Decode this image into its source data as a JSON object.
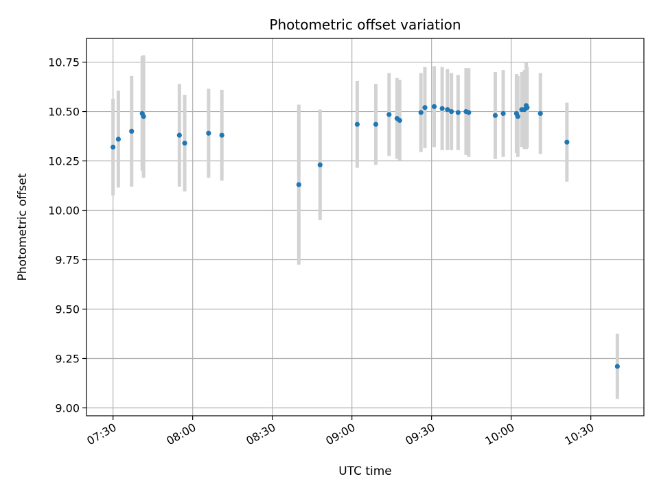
{
  "chart_data": {
    "type": "scatter",
    "title": "Photometric offset variation",
    "xlabel": "UTC time",
    "ylabel": "Photometric offset",
    "x_tick_labels": [
      "07:30",
      "08:00",
      "08:30",
      "09:00",
      "09:30",
      "10:00",
      "10:30"
    ],
    "y_tick_labels": [
      "9.00",
      "9.25",
      "9.50",
      "9.75",
      "10.00",
      "10.25",
      "10.50",
      "10.75"
    ],
    "xlim": [
      "07:20",
      "10:50"
    ],
    "ylim": [
      8.96,
      10.87
    ],
    "grid": true,
    "legend": "none",
    "colors": {
      "marker": "#1f77b4",
      "errorbar": "#d3d3d3",
      "grid": "#b0b0b0"
    },
    "points": [
      {
        "x": "07:30",
        "y": 10.32,
        "yerr": 0.245
      },
      {
        "x": "07:32",
        "y": 10.36,
        "yerr": 0.245
      },
      {
        "x": "07:37",
        "y": 10.4,
        "yerr": 0.28
      },
      {
        "x": "07:41",
        "y": 10.49,
        "yerr": 0.29
      },
      {
        "x": "07:41:30",
        "y": 10.475,
        "yerr": 0.31
      },
      {
        "x": "07:55",
        "y": 10.38,
        "yerr": 0.26
      },
      {
        "x": "07:57",
        "y": 10.34,
        "yerr": 0.245
      },
      {
        "x": "08:06",
        "y": 10.39,
        "yerr": 0.225
      },
      {
        "x": "08:11",
        "y": 10.38,
        "yerr": 0.23
      },
      {
        "x": "08:40",
        "y": 10.13,
        "yerr": 0.405
      },
      {
        "x": "08:48",
        "y": 10.23,
        "yerr": 0.28
      },
      {
        "x": "09:02",
        "y": 10.435,
        "yerr": 0.22
      },
      {
        "x": "09:09",
        "y": 10.435,
        "yerr": 0.205
      },
      {
        "x": "09:14",
        "y": 10.485,
        "yerr": 0.21
      },
      {
        "x": "09:17",
        "y": 10.465,
        "yerr": 0.205
      },
      {
        "x": "09:18",
        "y": 10.455,
        "yerr": 0.205
      },
      {
        "x": "09:26",
        "y": 10.495,
        "yerr": 0.2
      },
      {
        "x": "09:27:30",
        "y": 10.52,
        "yerr": 0.205
      },
      {
        "x": "09:31",
        "y": 10.525,
        "yerr": 0.205
      },
      {
        "x": "09:34",
        "y": 10.515,
        "yerr": 0.21
      },
      {
        "x": "09:36",
        "y": 10.51,
        "yerr": 0.205
      },
      {
        "x": "09:37:30",
        "y": 10.5,
        "yerr": 0.195
      },
      {
        "x": "09:40",
        "y": 10.495,
        "yerr": 0.19
      },
      {
        "x": "09:43",
        "y": 10.5,
        "yerr": 0.22
      },
      {
        "x": "09:44",
        "y": 10.495,
        "yerr": 0.225
      },
      {
        "x": "09:54",
        "y": 10.48,
        "yerr": 0.22
      },
      {
        "x": "09:57",
        "y": 10.49,
        "yerr": 0.22
      },
      {
        "x": "10:02",
        "y": 10.49,
        "yerr": 0.2
      },
      {
        "x": "10:02:30",
        "y": 10.475,
        "yerr": 0.205
      },
      {
        "x": "10:04",
        "y": 10.51,
        "yerr": 0.19
      },
      {
        "x": "10:05",
        "y": 10.51,
        "yerr": 0.2
      },
      {
        "x": "10:05:40",
        "y": 10.53,
        "yerr": 0.22
      },
      {
        "x": "10:06",
        "y": 10.52,
        "yerr": 0.205
      },
      {
        "x": "10:11",
        "y": 10.49,
        "yerr": 0.205
      },
      {
        "x": "10:21",
        "y": 10.345,
        "yerr": 0.2
      },
      {
        "x": "10:40",
        "y": 9.21,
        "yerr": 0.165
      }
    ]
  }
}
